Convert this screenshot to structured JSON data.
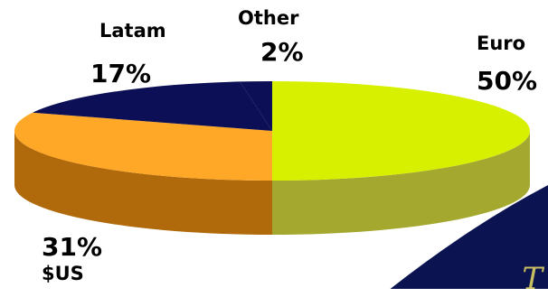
{
  "chart_data": {
    "type": "pie",
    "style": "3d",
    "title": "",
    "slices": [
      {
        "label": "Euro",
        "percent_text": "50%",
        "value": 50,
        "color": "#d6f000",
        "side_color": "#a5a82e"
      },
      {
        "label": "$US",
        "percent_text": "31%",
        "value": 31,
        "color": "#ffa726",
        "side_color": "#b06a0c"
      },
      {
        "label": "Latam",
        "percent_text": "17%",
        "value": 17,
        "color": "#0c0f55",
        "side_color": "#080a3a"
      },
      {
        "label": "Other",
        "percent_text": "2%",
        "value": 2,
        "color": "#0c0f55",
        "side_color": "#080a3a"
      }
    ]
  },
  "decoration": {
    "corner_swoosh_color": "#0b1450",
    "corner_swoosh_edge": "#ffffff",
    "corner_glyph": "T"
  }
}
